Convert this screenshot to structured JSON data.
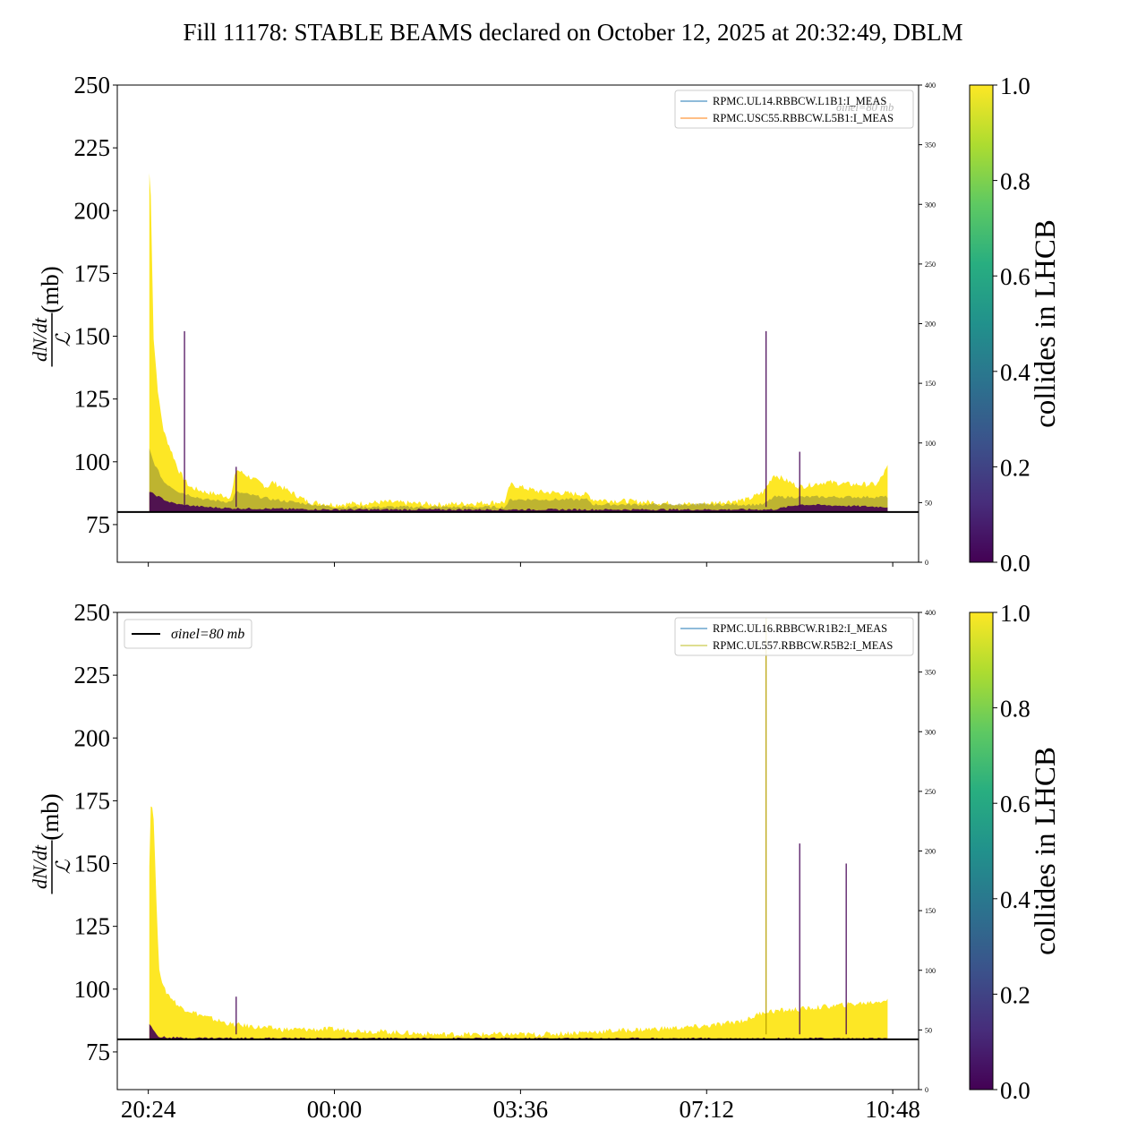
{
  "title": "Fill 11178: STABLE BEAMS declared on October 12, 2025 at 20:32:49, DBLM",
  "colors": {
    "viridis": [
      "#440154",
      "#472d7b",
      "#3b528b",
      "#2c728e",
      "#21918c",
      "#28ae80",
      "#5ec962",
      "#addc30",
      "#fde725"
    ],
    "ref_line": "#000000",
    "series_a": "#1f77b4",
    "series_b": "#ff7f0e",
    "series_c": "#1f77b4",
    "series_d": "#bcbd22"
  },
  "chart_data": [
    {
      "type": "area",
      "panel": "top",
      "ylabel": "dN/dt / L (mb)",
      "ylim": [
        60,
        250
      ],
      "yticks": [
        "75",
        "100",
        "125",
        "150",
        "175",
        "200",
        "225",
        "250"
      ],
      "y2lim": [
        0,
        400
      ],
      "y2ticks": [
        "0",
        "50",
        "100",
        "150",
        "200",
        "250",
        "300",
        "350",
        "400"
      ],
      "xticks": [
        "20:24",
        "00:00",
        "03:36",
        "07:12",
        "10:48"
      ],
      "xtick_hours": [
        20.4,
        24.0,
        27.6,
        31.2,
        34.8
      ],
      "xlim_hours": [
        19.8,
        35.3
      ],
      "grid": false,
      "reference_line": {
        "value": 80
      },
      "legend": {
        "placement": "top-right",
        "entries": [
          "RPMC.UL14.RBBCW.L1B1:I_MEAS",
          "RPMC.USC55.RBBCW.L5B1:I_MEAS"
        ]
      },
      "overlapped_legend_text": "σinel=80 mb",
      "colorbar": {
        "label": "collides in LHCB",
        "range": [
          0.0,
          1.0
        ],
        "ticks": [
          "0.0",
          "0.2",
          "0.4",
          "0.6",
          "0.8",
          "1.0"
        ]
      },
      "envelope_upper": {
        "x": [
          20.42,
          20.45,
          20.5,
          20.6,
          20.7,
          20.85,
          21.0,
          21.2,
          21.5,
          22.0,
          22.1,
          22.7,
          22.8,
          23.5,
          24.0,
          25.0,
          26.0,
          27.3,
          27.4,
          28.0,
          28.9,
          29.0,
          30.0,
          31.0,
          32.0,
          32.3,
          32.5,
          33.0,
          33.5,
          34.0,
          34.5,
          34.7
        ],
        "y": [
          215,
          205,
          150,
          125,
          112,
          104,
          96,
          90,
          88,
          86,
          97,
          90,
          92,
          84,
          83,
          84,
          83,
          84,
          91,
          88,
          87,
          85,
          84,
          83,
          85,
          88,
          95,
          90,
          92,
          91,
          91,
          98
        ]
      },
      "envelope_mid": {
        "x": [
          20.42,
          20.5,
          20.7,
          21.0,
          21.5,
          22.0,
          22.1,
          22.8,
          24.0,
          27.3,
          27.4,
          28.9,
          29.0,
          32.3,
          32.5,
          34.7
        ],
        "y": [
          105,
          100,
          92,
          88,
          85,
          84,
          88,
          85,
          82,
          82,
          85,
          85,
          83,
          83,
          86,
          86
        ]
      },
      "envelope_low": {
        "x": [
          20.42,
          20.8,
          21.0,
          21.5,
          22.0,
          24.0,
          32.5,
          33.0,
          34.7
        ],
        "y": [
          88,
          84,
          83,
          82,
          81.5,
          81,
          81,
          83,
          82
        ]
      },
      "spikes": [
        {
          "x": 21.1,
          "y": 152
        },
        {
          "x": 22.1,
          "y": 98
        },
        {
          "x": 32.35,
          "y": 152
        },
        {
          "x": 33.0,
          "y": 104
        }
      ]
    },
    {
      "type": "area",
      "panel": "bottom",
      "ylabel": "dN/dt / L (mb)",
      "ylim": [
        60,
        250
      ],
      "yticks": [
        "75",
        "100",
        "125",
        "150",
        "175",
        "200",
        "225",
        "250"
      ],
      "y2lim": [
        0,
        400
      ],
      "y2ticks": [
        "0",
        "50",
        "100",
        "150",
        "200",
        "250",
        "300",
        "350",
        "400"
      ],
      "xticks": [
        "20:24",
        "00:00",
        "03:36",
        "07:12",
        "10:48"
      ],
      "xtick_hours": [
        20.4,
        24.0,
        27.6,
        31.2,
        34.8
      ],
      "xlim_hours": [
        19.8,
        35.3
      ],
      "grid": false,
      "reference_line": {
        "value": 80
      },
      "legend": {
        "placement": "top-right",
        "entries": [
          "RPMC.UL16.RBBCW.R1B2:I_MEAS",
          "RPMC.UL557.RBBCW.R5B2:I_MEAS"
        ]
      },
      "reference_legend": {
        "placement": "top-left",
        "label": "σinel=80 mb"
      },
      "colorbar": {
        "label": "collides in LHCB",
        "range": [
          0.0,
          1.0
        ],
        "ticks": [
          "0.0",
          "0.2",
          "0.4",
          "0.6",
          "0.8",
          "1.0"
        ]
      },
      "envelope_upper": {
        "x": [
          20.42,
          20.45,
          20.5,
          20.6,
          20.7,
          21.0,
          21.5,
          22.0,
          23.0,
          24.0,
          25.0,
          26.0,
          27.0,
          28.0,
          29.0,
          30.0,
          31.0,
          31.5,
          32.0,
          32.3,
          33.0,
          33.5,
          34.0,
          34.5,
          34.7
        ],
        "y": [
          150,
          175,
          170,
          110,
          100,
          93,
          89,
          86,
          84,
          84,
          83,
          82,
          82,
          82,
          83,
          84,
          85,
          86,
          88,
          91,
          92,
          93,
          94,
          95,
          96
        ]
      },
      "envelope_low": {
        "x": [
          20.42,
          20.6,
          21.0,
          24.0,
          34.7
        ],
        "y": [
          86,
          81,
          80.6,
          80.4,
          80.4
        ]
      },
      "spikes": [
        {
          "x": 22.1,
          "y": 97
        },
        {
          "x": 32.35,
          "y": 248
        },
        {
          "x": 33.0,
          "y": 158
        },
        {
          "x": 33.9,
          "y": 150
        }
      ]
    }
  ]
}
